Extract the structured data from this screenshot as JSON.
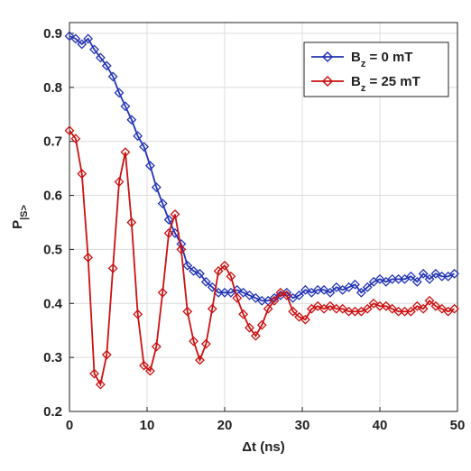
{
  "chart_data": {
    "type": "line",
    "xlabel": "Δt (ns)",
    "ylabel": "P|S>",
    "x": [
      0,
      0.8,
      1.6,
      2.4,
      3.2,
      4.0,
      4.8,
      5.6,
      6.4,
      7.2,
      8.0,
      8.8,
      9.6,
      10.4,
      11.2,
      12.0,
      12.8,
      13.6,
      14.4,
      15.2,
      16.0,
      16.8,
      17.6,
      18.4,
      19.2,
      20.0,
      20.8,
      21.6,
      22.4,
      23.2,
      24.0,
      24.8,
      25.6,
      26.4,
      27.2,
      28.0,
      28.8,
      29.6,
      30.4,
      31.2,
      32.0,
      32.8,
      33.6,
      34.4,
      35.2,
      36.0,
      36.8,
      37.6,
      38.4,
      39.2,
      40.0,
      40.8,
      41.6,
      42.4,
      43.2,
      44.0,
      44.8,
      45.6,
      46.4,
      47.2,
      48.0,
      48.8,
      49.6
    ],
    "series": [
      {
        "name": "Bz = 0 mT",
        "color": "#2233b5",
        "values": [
          0.895,
          0.89,
          0.88,
          0.89,
          0.87,
          0.855,
          0.84,
          0.82,
          0.79,
          0.765,
          0.74,
          0.71,
          0.69,
          0.655,
          0.615,
          0.585,
          0.555,
          0.53,
          0.51,
          0.47,
          0.46,
          0.455,
          0.44,
          0.43,
          0.42,
          0.42,
          0.42,
          0.425,
          0.42,
          0.415,
          0.41,
          0.405,
          0.405,
          0.41,
          0.415,
          0.42,
          0.41,
          0.415,
          0.425,
          0.42,
          0.425,
          0.425,
          0.42,
          0.43,
          0.425,
          0.43,
          0.435,
          0.42,
          0.43,
          0.44,
          0.445,
          0.44,
          0.445,
          0.445,
          0.445,
          0.45,
          0.44,
          0.455,
          0.445,
          0.455,
          0.45,
          0.45,
          0.455
        ]
      },
      {
        "name": "Bz = 25 mT",
        "color": "#cc1111",
        "values": [
          0.72,
          0.705,
          0.64,
          0.485,
          0.27,
          0.25,
          0.305,
          0.465,
          0.625,
          0.68,
          0.55,
          0.38,
          0.285,
          0.275,
          0.32,
          0.42,
          0.53,
          0.565,
          0.5,
          0.385,
          0.33,
          0.295,
          0.325,
          0.39,
          0.46,
          0.47,
          0.45,
          0.41,
          0.38,
          0.355,
          0.34,
          0.36,
          0.39,
          0.405,
          0.42,
          0.415,
          0.385,
          0.375,
          0.37,
          0.39,
          0.395,
          0.39,
          0.395,
          0.39,
          0.39,
          0.385,
          0.385,
          0.385,
          0.39,
          0.4,
          0.395,
          0.395,
          0.39,
          0.385,
          0.385,
          0.385,
          0.395,
          0.39,
          0.405,
          0.395,
          0.39,
          0.385,
          0.39
        ]
      }
    ],
    "xlim": [
      0,
      50
    ],
    "xticks": [
      0,
      10,
      20,
      30,
      40,
      50
    ],
    "ylim": [
      0.2,
      0.92
    ],
    "yticks": [
      0.2,
      0.3,
      0.4,
      0.5,
      0.6,
      0.7,
      0.8,
      0.9
    ],
    "grid": true,
    "legend": "upper right"
  }
}
